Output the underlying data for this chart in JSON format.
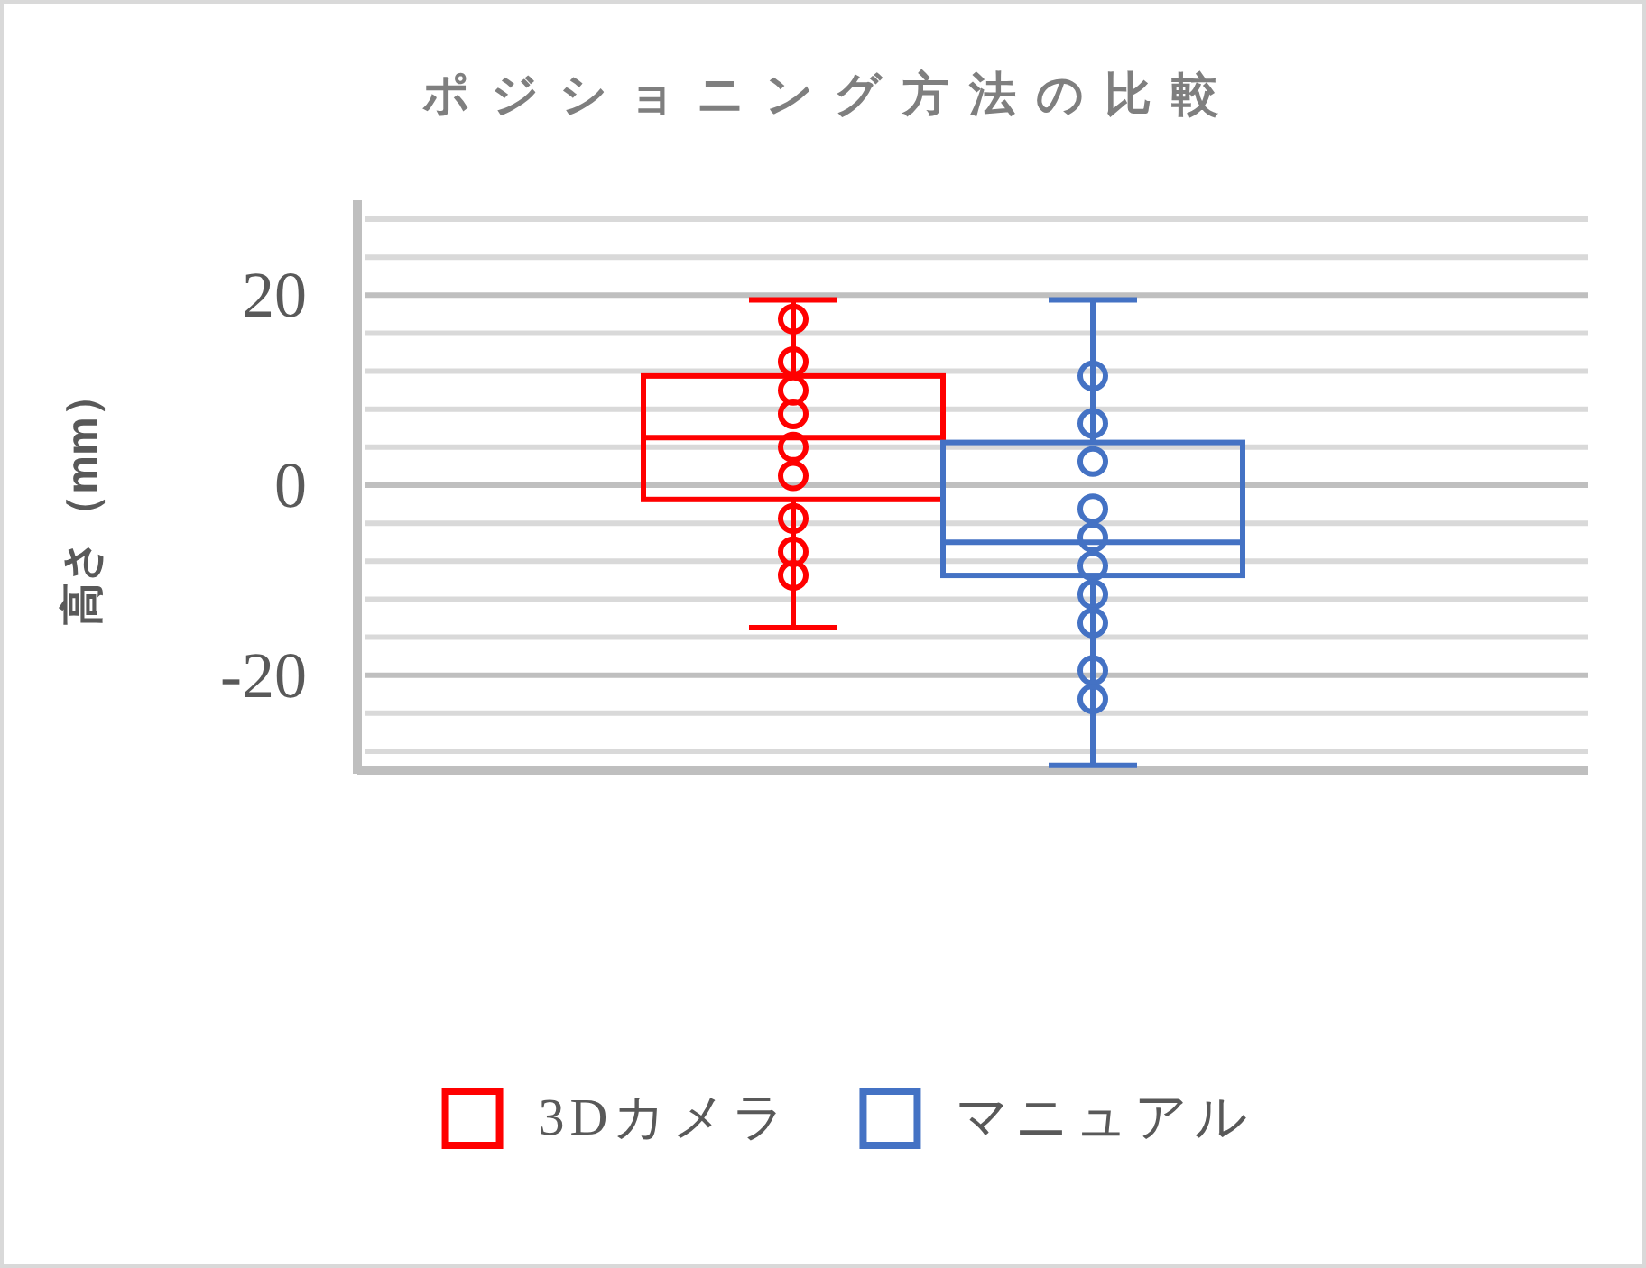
{
  "chart_data": {
    "type": "box",
    "title": "ポジショニング方法の比較",
    "ylabel": "高さ（mm）",
    "categories": [
      null
    ],
    "series": [
      {
        "name": "3Dカメラ",
        "color": "#ff0000",
        "boxes": [
          {
            "low": -15,
            "q1": -1.5,
            "median": 5,
            "q3": 11.5,
            "high": 19.5,
            "outliers": [
              17.5,
              13,
              10,
              7.5,
              4,
              1,
              -3.5,
              -7,
              -9.5
            ]
          }
        ]
      },
      {
        "name": "マニュアル",
        "color": "#4472c4",
        "boxes": [
          {
            "low": -29.5,
            "q1": -9.5,
            "median": -6,
            "q3": 4.5,
            "high": 19.5,
            "outliers": [
              11.5,
              6.5,
              2.5,
              -2.5,
              -5.5,
              -8.5,
              -11.5,
              -14.5,
              -19.5,
              -22.5
            ]
          }
        ]
      }
    ],
    "ylim": [
      -30,
      30
    ],
    "yticks": [
      {
        "value": -28,
        "label": null
      },
      {
        "value": -24,
        "label": null
      },
      -20,
      {
        "value": -16,
        "label": null
      },
      {
        "value": -12,
        "label": null
      },
      {
        "value": -8,
        "label": null
      },
      {
        "value": -4,
        "label": null
      },
      0,
      {
        "value": 4,
        "label": null
      },
      {
        "value": 8,
        "label": null
      },
      {
        "value": 12,
        "label": null
      },
      {
        "value": 16,
        "label": null
      },
      20,
      {
        "value": 24,
        "label": null
      },
      {
        "value": 28,
        "label": null
      }
    ],
    "grid": true,
    "legend": "bottom",
    "marker": "circle"
  }
}
